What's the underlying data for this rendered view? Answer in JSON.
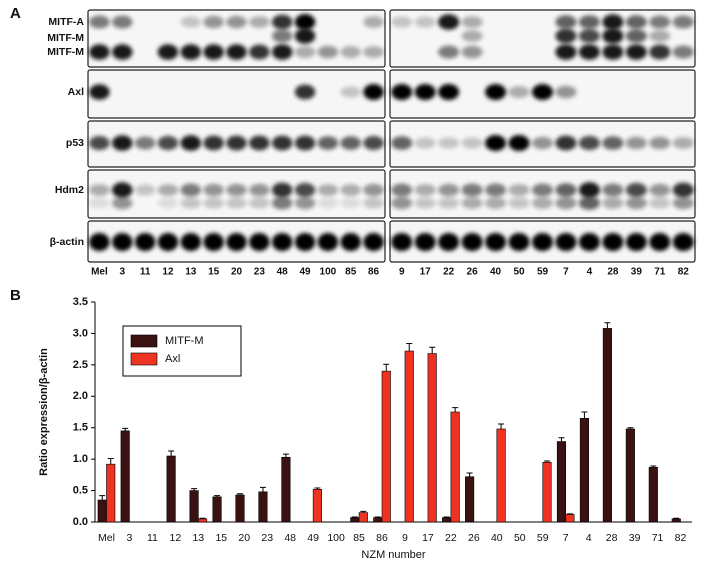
{
  "panel_labels": [
    "A",
    "B"
  ],
  "blot": {
    "proteins": [
      "MITF-A",
      "MITF-M",
      "MITF-M",
      "Axl",
      "p53",
      "Hdm2",
      "β-actin"
    ],
    "lanes_left": [
      "Mel",
      "3",
      "11",
      "12",
      "13",
      "15",
      "20",
      "23",
      "48",
      "49",
      "100",
      "85",
      "86"
    ],
    "lanes_right": [
      "9",
      "17",
      "22",
      "26",
      "40",
      "50",
      "59",
      "7",
      "4",
      "28",
      "39",
      "71",
      "82"
    ]
  },
  "chart_data": {
    "type": "bar",
    "x_label": "NZM number",
    "y_label": "Ratio expression/β-actin",
    "categories": [
      "Mel",
      "3",
      "11",
      "12",
      "13",
      "15",
      "20",
      "23",
      "48",
      "49",
      "100",
      "85",
      "86",
      "9",
      "17",
      "22",
      "26",
      "40",
      "50",
      "59",
      "7",
      "4",
      "28",
      "39",
      "71",
      "82"
    ],
    "series": [
      {
        "name": "MITF-M",
        "color": "#3b1212",
        "values": [
          0.35,
          1.45,
          0,
          1.05,
          0.5,
          0.4,
          0.43,
          0.48,
          1.03,
          0,
          0,
          0.07,
          0.07,
          0,
          0,
          0.07,
          0.72,
          0,
          0,
          0,
          1.28,
          1.65,
          3.08,
          1.48,
          0.87,
          0.05
        ],
        "errors": [
          0.07,
          0.04,
          0,
          0.08,
          0.03,
          0.02,
          0.02,
          0.07,
          0.05,
          0,
          0,
          0.01,
          0.01,
          0,
          0,
          0.01,
          0.06,
          0,
          0,
          0,
          0.06,
          0.1,
          0.09,
          0.02,
          0.02,
          0.01
        ]
      },
      {
        "name": "Axl",
        "color": "#ee3322",
        "values": [
          0.92,
          0,
          0,
          0,
          0.05,
          0,
          0,
          0,
          0,
          0.52,
          0,
          0.15,
          2.4,
          2.72,
          2.68,
          1.75,
          0,
          1.48,
          0,
          0.95,
          0.12,
          0,
          0,
          0,
          0,
          0
        ],
        "errors": [
          0.09,
          0,
          0,
          0,
          0.01,
          0,
          0,
          0,
          0,
          0.02,
          0,
          0.02,
          0.11,
          0.12,
          0.1,
          0.07,
          0,
          0.08,
          0,
          0.02,
          0.01,
          0,
          0,
          0,
          0,
          0
        ]
      }
    ],
    "ylim": [
      0,
      3.5
    ],
    "yticks": [
      {
        "value": 0,
        "label": "0.0"
      },
      {
        "value": 0.5,
        "label": "0.5"
      },
      {
        "value": 1,
        "label": "1.0"
      },
      {
        "value": 1.5,
        "label": "1.5"
      },
      {
        "value": 2,
        "label": "2.0"
      },
      {
        "value": 2.5,
        "label": "2.5"
      },
      {
        "value": 3,
        "label": "3.0"
      },
      {
        "value": 3.5,
        "label": "3.5"
      }
    ],
    "legend": "upper-left"
  }
}
